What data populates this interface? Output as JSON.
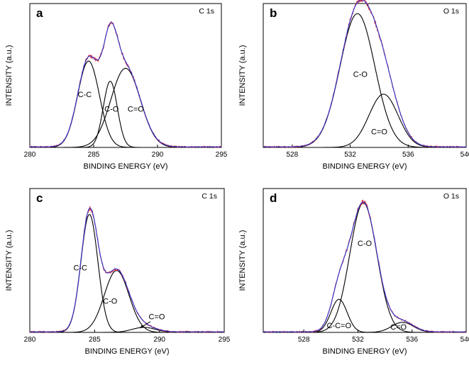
{
  "chart_data": [
    {
      "type": "line",
      "panel": "a",
      "corner_label": "C 1s",
      "xlabel": "BINDING ENERGY (eV)",
      "ylabel": "INTENSITY (a.u.)",
      "xlim": [
        280,
        295
      ],
      "ylim": [
        0,
        1.0
      ],
      "xticks": [
        280,
        285,
        290,
        295
      ],
      "colors": {
        "measured": "#e8202a",
        "fit": "#2b3bd1",
        "component": "#000000"
      },
      "components": [
        {
          "label": "C-C",
          "center": 284.6,
          "height": 0.6,
          "sigma": 0.85,
          "label_x": 284.3,
          "label_y": 0.35
        },
        {
          "label": "C-O",
          "center": 286.3,
          "height": 0.46,
          "sigma": 0.55,
          "label_x": 286.4,
          "label_y": 0.25
        },
        {
          "label": "C=O",
          "center": 287.5,
          "height": 0.55,
          "sigma": 1.15,
          "label_x": 288.3,
          "label_y": 0.25
        }
      ],
      "series": [
        {
          "name": "measured",
          "style": "noisy"
        },
        {
          "name": "envelope fit"
        }
      ]
    },
    {
      "type": "line",
      "panel": "b",
      "corner_label": "O 1s",
      "xlabel": "BINDING ENERGY (eV)",
      "ylabel": "INTENSITY (a.u.)",
      "xlim": [
        526,
        540
      ],
      "ylim": [
        0,
        1.0
      ],
      "xticks": [
        528,
        532,
        536,
        540
      ],
      "colors": {
        "measured": "#e8202a",
        "fit": "#2b3bd1",
        "component": "#000000"
      },
      "components": [
        {
          "label": "C-O",
          "center": 532.5,
          "height": 0.93,
          "sigma": 1.2,
          "label_x": 532.7,
          "label_y": 0.49
        },
        {
          "label": "C=O",
          "center": 534.3,
          "height": 0.37,
          "sigma": 1.0,
          "label_x": 534.0,
          "label_y": 0.09
        }
      ],
      "series": [
        {
          "name": "measured",
          "style": "noisy"
        },
        {
          "name": "envelope fit"
        }
      ]
    },
    {
      "type": "line",
      "panel": "c",
      "corner_label": "C 1s",
      "xlabel": "BINDING ENERGY (eV)",
      "ylabel": "INTENSITY (a.u.)",
      "xlim": [
        280,
        295
      ],
      "ylim": [
        0,
        1.0
      ],
      "xticks": [
        280,
        285,
        290,
        295
      ],
      "colors": {
        "measured": "#e8202a",
        "fit": "#2b3bd1",
        "component": "#000000"
      },
      "components": [
        {
          "label": "C-C",
          "center": 284.6,
          "height": 0.82,
          "sigma": 0.65,
          "label_x": 283.9,
          "label_y": 0.43
        },
        {
          "label": "C-O",
          "center": 286.7,
          "height": 0.43,
          "sigma": 0.95,
          "label_x": 286.2,
          "label_y": 0.2
        },
        {
          "label": "C=O",
          "center": 288.8,
          "height": 0.035,
          "sigma": 0.9,
          "label_x": 289.8,
          "label_y": 0.09
        }
      ],
      "series": [
        {
          "name": "measured",
          "style": "noisy"
        },
        {
          "name": "envelope fit"
        }
      ]
    },
    {
      "type": "line",
      "panel": "d",
      "corner_label": "O 1s",
      "xlabel": "BINDING ENERGY (eV)",
      "ylabel": "INTENSITY (a.u.)",
      "xlim": [
        525,
        540
      ],
      "ylim": [
        0,
        1.0
      ],
      "xticks": [
        528,
        532,
        536,
        540
      ],
      "colors": {
        "measured": "#e8202a",
        "fit": "#2b3bd1",
        "component": "#000000"
      },
      "components": [
        {
          "label": "C-C=O",
          "center": 530.6,
          "height": 0.23,
          "sigma": 0.6,
          "label_x": 530.6,
          "label_y": 0.03
        },
        {
          "label": "C-O",
          "center": 532.4,
          "height": 0.9,
          "sigma": 1.0,
          "label_x": 532.5,
          "label_y": 0.6
        },
        {
          "label": "C=O",
          "center": 535.3,
          "height": 0.07,
          "sigma": 0.8,
          "label_x": 535.0,
          "label_y": 0.02
        }
      ],
      "series": [
        {
          "name": "measured",
          "style": "noisy"
        },
        {
          "name": "envelope fit"
        }
      ]
    }
  ]
}
